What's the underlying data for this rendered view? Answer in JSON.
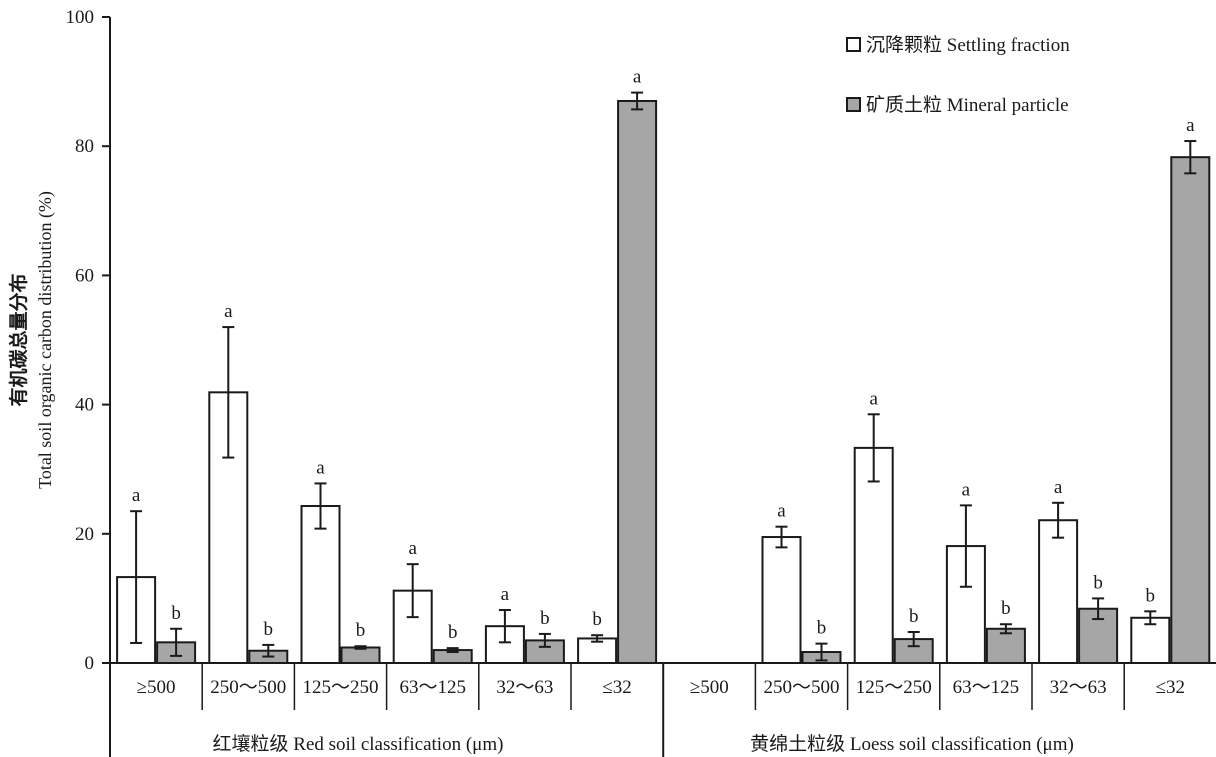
{
  "chart_data": {
    "type": "bar",
    "ylabel_zh": "有机碳总量分布",
    "ylabel_en": "Total soil organic carbon distribution (%)",
    "ylim": [
      0,
      100
    ],
    "yticks": [
      0,
      20,
      40,
      60,
      80,
      100
    ],
    "groups": [
      {
        "label": "红壤粒级  Red soil classification (μm)",
        "categories": [
          "≥500",
          "250～500",
          "125～250",
          "63～125",
          "32～63",
          "≤32"
        ]
      },
      {
        "label": "黄绵土粒级  Loess soil classification (μm)",
        "categories": [
          "≥500",
          "250～500",
          "125～250",
          "63～125",
          "32～63",
          "≤32"
        ]
      }
    ],
    "series": [
      {
        "name": "沉降颗粒  Settling fraction",
        "color": "#ffffff",
        "values": [
          13.3,
          41.9,
          24.3,
          11.2,
          5.7,
          3.8,
          null,
          19.5,
          33.3,
          18.1,
          22.1,
          7.0
        ],
        "errors": [
          10.2,
          10.1,
          3.5,
          4.1,
          2.5,
          0.5,
          null,
          1.6,
          5.2,
          6.3,
          2.7,
          1.0
        ],
        "letters": [
          "a",
          "a",
          "a",
          "a",
          "a",
          "b",
          "",
          "a",
          "a",
          "a",
          "a",
          "b"
        ]
      },
      {
        "name": "矿质土粒  Mineral particle",
        "color": "#a6a6a6",
        "values": [
          3.2,
          1.9,
          2.4,
          2.0,
          3.5,
          87.0,
          null,
          1.7,
          3.7,
          5.3,
          8.4,
          78.3
        ],
        "errors": [
          2.1,
          0.9,
          0.2,
          0.3,
          1.0,
          1.3,
          null,
          1.3,
          1.1,
          0.7,
          1.6,
          2.5
        ],
        "letters": [
          "b",
          "b",
          "b",
          "b",
          "b",
          "a",
          "",
          "b",
          "b",
          "b",
          "b",
          "a"
        ]
      }
    ],
    "legend_position": "top-right"
  }
}
